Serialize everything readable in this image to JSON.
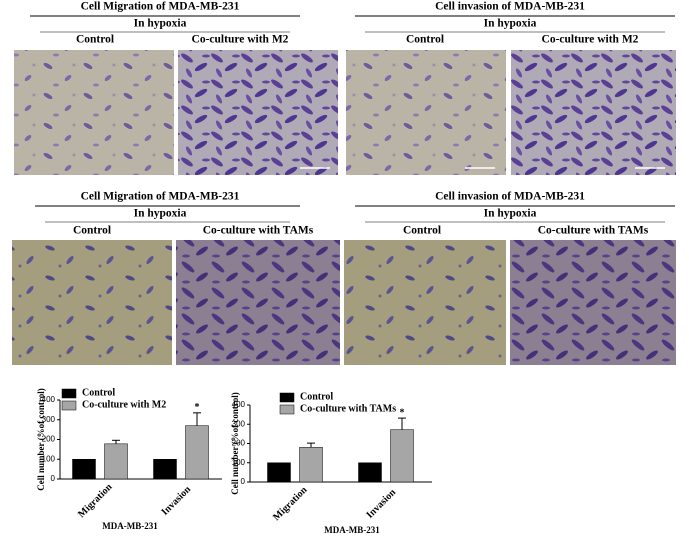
{
  "panels": [
    {
      "title": "Cell Migration of MDA-MB-231",
      "subtitle": "In hypoxia",
      "labels": [
        "Control",
        "Co-culture with M2"
      ]
    },
    {
      "title": "Cell invasion of MDA-MB-231",
      "subtitle": "In hypoxia",
      "labels": [
        "Control",
        "Co-culture with M2"
      ]
    },
    {
      "title": "Cell Migration of MDA-MB-231",
      "subtitle": "In hypoxia",
      "labels": [
        "Control",
        "Co-culture with TAMs"
      ]
    },
    {
      "title": "Cell invasion of MDA-MB-231",
      "subtitle": "In hypoxia",
      "labels": [
        "Control",
        "Co-culture with TAMs"
      ]
    }
  ],
  "chart_data": [
    {
      "type": "bar",
      "y_label": "Cell number (%of control)",
      "x_label": "MDA-MB-231",
      "categories": [
        "Migration",
        "Invasion"
      ],
      "series": [
        {
          "name": "Control",
          "color": "#000000",
          "values": [
            100,
            100
          ]
        },
        {
          "name": "Co-culture with M2",
          "color": "#a6a6a6",
          "values": [
            178,
            270
          ],
          "errors": [
            18,
            65
          ]
        }
      ],
      "annotations": [
        {
          "text": "*",
          "category": "Invasion"
        }
      ],
      "ylim": [
        0,
        400
      ],
      "yticks": [
        0,
        100,
        200,
        300,
        400
      ]
    },
    {
      "type": "bar",
      "y_label": "Cell number (%of control)",
      "x_label": "MDA-MB-231",
      "categories": [
        "Migration",
        "Invasion"
      ],
      "series": [
        {
          "name": "Control",
          "color": "#000000",
          "values": [
            100,
            100
          ]
        },
        {
          "name": "Co-culture with TAMs",
          "color": "#a6a6a6",
          "values": [
            180,
            272
          ],
          "errors": [
            22,
            60
          ]
        }
      ],
      "annotations": [
        {
          "text": "*",
          "category": "Invasion"
        }
      ],
      "ylim": [
        0,
        400
      ],
      "yticks": [
        0,
        100,
        200,
        300,
        400
      ]
    }
  ]
}
